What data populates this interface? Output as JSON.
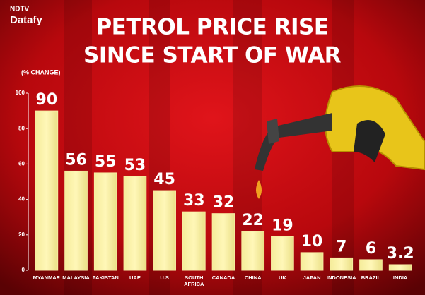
{
  "logo": {
    "brand": "NDTV",
    "product": "Datafy"
  },
  "chart_data": {
    "type": "bar",
    "title": [
      "PETROL PRICE RISE",
      "SINCE START OF WAR"
    ],
    "y_label": "(% CHANGE)",
    "categories": [
      "MYANMAR",
      "MALAYSIA",
      "PAKISTAN",
      "UAE",
      "U.S",
      "SOUTH AFRICA",
      "CANADA",
      "CHINA",
      "UK",
      "JAPAN",
      "INDONESIA",
      "BRAZIL",
      "INDIA"
    ],
    "values": [
      90,
      56,
      55,
      53,
      45,
      33,
      32,
      22,
      19,
      10,
      7,
      6,
      3.2
    ],
    "color": "#f7eea4",
    "ylim": [
      0,
      100
    ],
    "yticks": [
      0,
      20,
      40,
      60,
      80,
      100
    ],
    "grid": false
  }
}
